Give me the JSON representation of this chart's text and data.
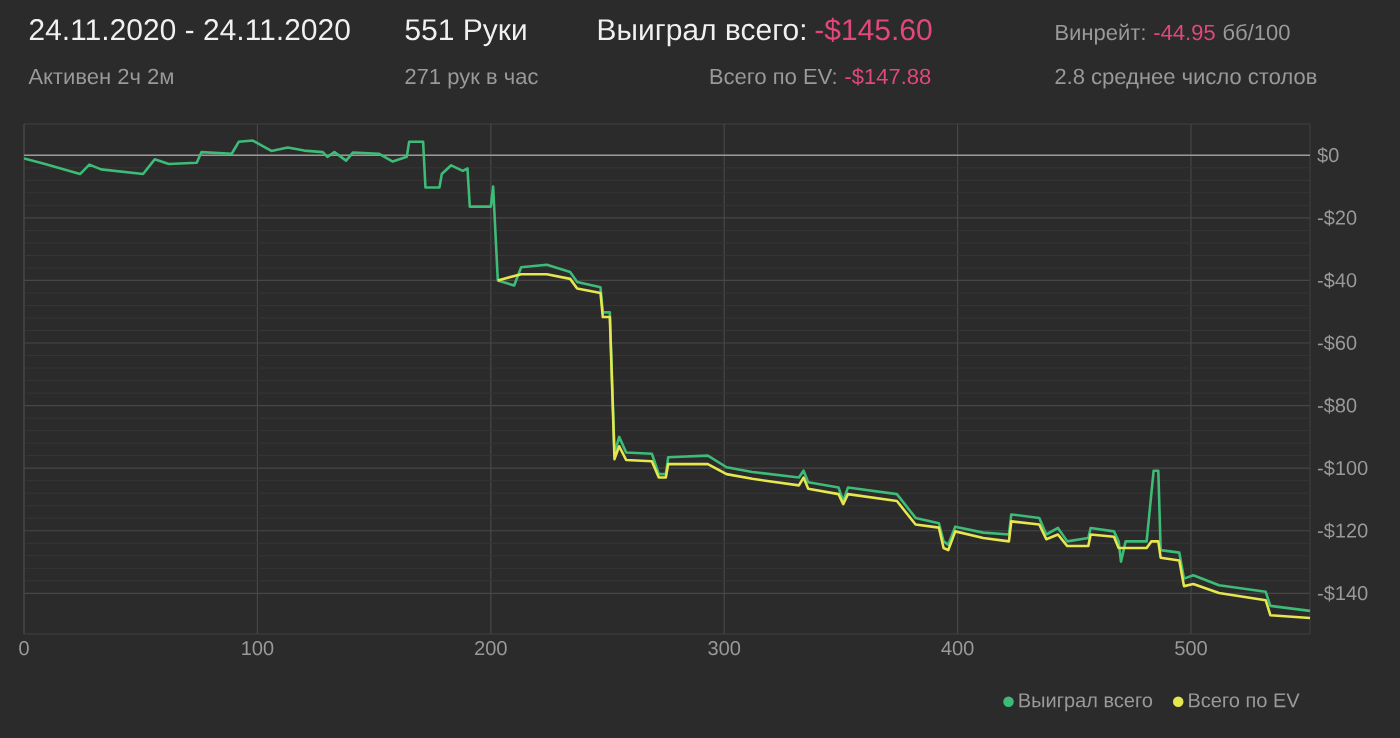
{
  "chart_data": {
    "type": "line",
    "title": "24.11.2020 - 24.11.2020",
    "subtitle": "Активен 2ч 2м",
    "annotations": [
      "551 Руки",
      "271 рук в час",
      "Выиграл всего:",
      "-$145.60",
      "Всего по EV:",
      "-$147.88",
      "Винрейт:",
      "-44.95",
      "бб/100",
      "2.8 среднее число столов"
    ],
    "series": [
      {
        "name": "Выиграл всего",
        "color": "#3dbb77",
        "x": [
          0,
          9,
          24,
          28,
          33,
          51,
          56,
          62,
          74,
          76,
          89,
          92,
          98,
          106,
          113,
          120,
          128,
          130,
          133,
          138,
          141,
          152,
          158,
          164,
          165,
          171,
          172,
          178,
          179,
          183,
          188,
          190,
          191,
          200,
          201,
          203,
          210,
          213,
          224,
          234,
          237,
          247,
          248,
          251,
          253,
          255,
          258,
          269,
          272,
          275,
          276,
          293,
          301,
          312,
          332,
          334,
          336,
          349,
          351,
          353,
          374,
          382,
          392,
          394,
          396,
          399,
          411,
          422,
          423,
          435,
          438,
          443,
          447,
          456,
          457,
          467,
          469,
          470,
          472,
          481,
          484,
          486,
          487,
          495,
          497,
          501,
          512,
          532,
          534,
          551
        ],
        "values": [
          -1,
          -2.8,
          -6,
          -3,
          -4.5,
          -6,
          -1.3,
          -2.8,
          -2.4,
          1,
          0.5,
          4.3,
          4.7,
          1.4,
          2.5,
          1.5,
          1,
          -0.5,
          1,
          -1.7,
          0.9,
          0.5,
          -2,
          -0.5,
          4.3,
          4.3,
          -10.3,
          -10.3,
          -6,
          -3.2,
          -5,
          -4.2,
          -16.4,
          -16.4,
          -10,
          -40,
          -41.6,
          -35.8,
          -35,
          -37.3,
          -40.5,
          -42.2,
          -50.2,
          -50.2,
          -95.4,
          -90,
          -95,
          -95.4,
          -101.9,
          -101.9,
          -96.5,
          -96,
          -99.7,
          -101.2,
          -103,
          -100.8,
          -104.5,
          -106.2,
          -110.5,
          -106.2,
          -108.3,
          -115.9,
          -117.6,
          -123.4,
          -124.5,
          -118.7,
          -120.6,
          -121.2,
          -114.8,
          -115.9,
          -121.2,
          -119.1,
          -123.4,
          -122.3,
          -119.1,
          -120.2,
          -123.4,
          -129.9,
          -123.4,
          -123.4,
          -100.8,
          -100.8,
          -126.2,
          -127,
          -135.3,
          -134.2,
          -137.4,
          -139.5,
          -144,
          -145.6
        ]
      },
      {
        "name": "Всего по EV",
        "color": "#e6e64e",
        "x": [
          203,
          213,
          224,
          234,
          237,
          247,
          248,
          251,
          253,
          255,
          258,
          269,
          272,
          275,
          276,
          293,
          301,
          312,
          332,
          334,
          336,
          349,
          351,
          353,
          374,
          382,
          392,
          394,
          396,
          399,
          411,
          422,
          423,
          435,
          438,
          443,
          447,
          456,
          457,
          467,
          469,
          472,
          481,
          483,
          486,
          487,
          495,
          497,
          501,
          512,
          532,
          534,
          551
        ],
        "values": [
          -40,
          -38,
          -38,
          -39.5,
          -42.6,
          -44,
          -51.7,
          -51.7,
          -97.1,
          -93,
          -97.4,
          -97.8,
          -103,
          -103,
          -98.7,
          -98.7,
          -101.9,
          -103.4,
          -105.5,
          -103,
          -106.6,
          -108.3,
          -111.5,
          -108.3,
          -110.5,
          -118,
          -119,
          -125.5,
          -126.2,
          -120.2,
          -122.3,
          -123.4,
          -117,
          -118,
          -122.7,
          -121.2,
          -124.9,
          -124.9,
          -121.2,
          -121.9,
          -125.5,
          -125.5,
          -125.5,
          -123.4,
          -123.4,
          -128.6,
          -129.5,
          -137.7,
          -137,
          -139.9,
          -142.2,
          -147,
          -147.9
        ]
      }
    ],
    "xlim": [
      0,
      551
    ],
    "ylim": [
      -153,
      10
    ],
    "xticks": [
      0,
      100,
      200,
      300,
      400,
      500
    ],
    "yticks": [
      {
        "value": 0,
        "label": "$0"
      },
      {
        "value": -20,
        "label": "-$20"
      },
      {
        "value": -40,
        "label": "-$40"
      },
      {
        "value": -60,
        "label": "-$60"
      },
      {
        "value": -80,
        "label": "-$80"
      },
      {
        "value": -100,
        "label": "-$100"
      },
      {
        "value": -120,
        "label": "-$120"
      },
      {
        "value": -140,
        "label": "-$140"
      }
    ],
    "ref_lines": [
      {
        "axis": "y",
        "value": 0,
        "color": "#9a9a9a"
      }
    ],
    "grid": true,
    "legend": "bottom right",
    "line_style": "solid"
  }
}
